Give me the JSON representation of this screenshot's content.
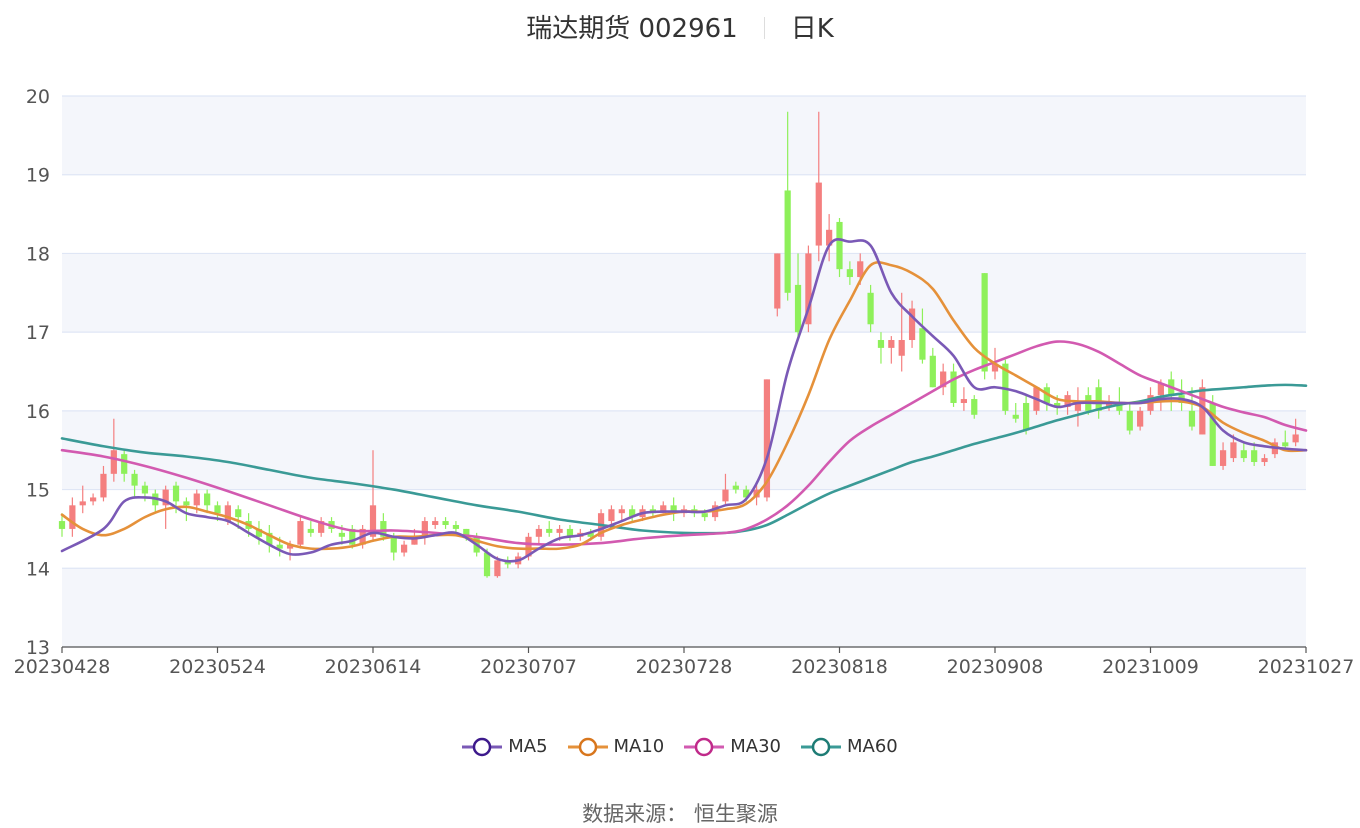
{
  "header": {
    "title": "瑞达期货 002961",
    "period": "日K"
  },
  "footer": {
    "source": "数据来源： 恒生聚源"
  },
  "colors": {
    "up": "#f47f7f",
    "down": "#8ef05a",
    "ma5": "#7a59b6",
    "ma10": "#e5913a",
    "ma30": "#d25ab0",
    "ma60": "#3a9a96",
    "ma5_ring": "#3d1a8c",
    "ma10_ring": "#d8761d",
    "ma30_ring": "#c02a8a",
    "ma60_ring": "#1e7c75",
    "band": "#f4f6fb",
    "grid": "#dfe6f5"
  },
  "chart_data": {
    "type": "candlestick",
    "title": "瑞达期货 002961",
    "subtitle": "日K",
    "ylim": [
      13,
      20
    ],
    "yticks": [
      13,
      14,
      15,
      16,
      17,
      18,
      19,
      20
    ],
    "xtick_labels": [
      "20230428",
      "20230524",
      "20230614",
      "20230707",
      "20230728",
      "20230818",
      "20230908",
      "20231009",
      "20231027"
    ],
    "legend": [
      "MA5",
      "MA10",
      "MA30",
      "MA60"
    ],
    "legend_position": "bottom-center",
    "n_days": 121,
    "candles": [
      [
        14.6,
        14.5,
        14.7,
        14.4
      ],
      [
        14.5,
        14.8,
        14.9,
        14.4
      ],
      [
        14.8,
        14.85,
        15.05,
        14.7
      ],
      [
        14.85,
        14.9,
        14.95,
        14.8
      ],
      [
        14.9,
        15.2,
        15.3,
        14.85
      ],
      [
        15.2,
        15.5,
        15.9,
        15.1
      ],
      [
        15.45,
        15.2,
        15.5,
        15.1
      ],
      [
        15.2,
        15.05,
        15.25,
        14.9
      ],
      [
        15.05,
        14.95,
        15.1,
        14.85
      ],
      [
        14.95,
        14.8,
        15.0,
        14.7
      ],
      [
        14.8,
        15.0,
        15.05,
        14.5
      ],
      [
        15.05,
        14.85,
        15.1,
        14.7
      ],
      [
        14.85,
        14.8,
        14.9,
        14.6
      ],
      [
        14.8,
        14.95,
        15.0,
        14.7
      ],
      [
        14.95,
        14.8,
        15.0,
        14.7
      ],
      [
        14.8,
        14.7,
        14.85,
        14.6
      ],
      [
        14.6,
        14.8,
        14.85,
        14.55
      ],
      [
        14.75,
        14.65,
        14.8,
        14.5
      ],
      [
        14.6,
        14.5,
        14.7,
        14.4
      ],
      [
        14.5,
        14.4,
        14.6,
        14.3
      ],
      [
        14.45,
        14.3,
        14.55,
        14.2
      ],
      [
        14.3,
        14.25,
        14.4,
        14.15
      ],
      [
        14.25,
        14.3,
        14.35,
        14.1
      ],
      [
        14.3,
        14.6,
        14.65,
        14.25
      ],
      [
        14.5,
        14.45,
        14.6,
        14.4
      ],
      [
        14.45,
        14.6,
        14.65,
        14.4
      ],
      [
        14.6,
        14.5,
        14.65,
        14.45
      ],
      [
        14.45,
        14.4,
        14.55,
        14.3
      ],
      [
        14.5,
        14.3,
        14.55,
        14.25
      ],
      [
        14.3,
        14.5,
        14.55,
        14.25
      ],
      [
        14.4,
        14.8,
        15.5,
        14.35
      ],
      [
        14.6,
        14.4,
        14.7,
        14.35
      ],
      [
        14.4,
        14.2,
        14.45,
        14.1
      ],
      [
        14.2,
        14.3,
        14.35,
        14.15
      ],
      [
        14.3,
        14.4,
        14.5,
        14.3
      ],
      [
        14.4,
        14.6,
        14.65,
        14.3
      ],
      [
        14.55,
        14.6,
        14.65,
        14.5
      ],
      [
        14.6,
        14.55,
        14.65,
        14.5
      ],
      [
        14.55,
        14.5,
        14.6,
        14.45
      ],
      [
        14.5,
        14.4,
        14.5,
        14.35
      ],
      [
        14.4,
        14.2,
        14.45,
        14.15
      ],
      [
        14.2,
        13.9,
        14.25,
        13.88
      ],
      [
        13.9,
        14.1,
        14.15,
        13.88
      ],
      [
        14.1,
        14.05,
        14.15,
        14.0
      ],
      [
        14.05,
        14.15,
        14.2,
        14.0
      ],
      [
        14.15,
        14.4,
        14.45,
        14.1
      ],
      [
        14.4,
        14.5,
        14.55,
        14.3
      ],
      [
        14.5,
        14.45,
        14.6,
        14.4
      ],
      [
        14.45,
        14.5,
        14.55,
        14.35
      ],
      [
        14.5,
        14.4,
        14.55,
        14.35
      ],
      [
        14.4,
        14.45,
        14.5,
        14.35
      ],
      [
        14.45,
        14.4,
        14.5,
        14.35
      ],
      [
        14.4,
        14.7,
        14.75,
        14.35
      ],
      [
        14.6,
        14.75,
        14.8,
        14.55
      ],
      [
        14.7,
        14.75,
        14.8,
        14.6
      ],
      [
        14.75,
        14.65,
        14.8,
        14.6
      ],
      [
        14.65,
        14.75,
        14.8,
        14.6
      ],
      [
        14.75,
        14.7,
        14.8,
        14.65
      ],
      [
        14.7,
        14.8,
        14.85,
        14.7
      ],
      [
        14.8,
        14.7,
        14.9,
        14.6
      ],
      [
        14.7,
        14.75,
        14.8,
        14.65
      ],
      [
        14.75,
        14.7,
        14.8,
        14.65
      ],
      [
        14.7,
        14.65,
        14.75,
        14.6
      ],
      [
        14.65,
        14.8,
        14.85,
        14.6
      ],
      [
        14.85,
        15.0,
        15.2,
        14.8
      ],
      [
        15.05,
        15.0,
        15.1,
        14.95
      ],
      [
        15.0,
        14.9,
        15.05,
        14.85
      ],
      [
        14.9,
        15.0,
        15.1,
        14.8
      ],
      [
        14.9,
        16.4,
        16.4,
        14.85
      ],
      [
        17.3,
        18.0,
        18.0,
        17.2
      ],
      [
        18.8,
        17.5,
        19.8,
        17.4
      ],
      [
        17.6,
        17.0,
        18.0,
        16.9
      ],
      [
        17.1,
        18.0,
        18.1,
        17.0
      ],
      [
        18.1,
        18.9,
        19.8,
        17.9
      ],
      [
        18.1,
        18.3,
        18.5,
        17.9
      ],
      [
        18.4,
        17.8,
        18.45,
        17.7
      ],
      [
        17.8,
        17.7,
        17.9,
        17.6
      ],
      [
        17.7,
        17.9,
        18.0,
        17.6
      ],
      [
        17.5,
        17.1,
        17.6,
        17.0
      ],
      [
        16.9,
        16.8,
        17.0,
        16.6
      ],
      [
        16.8,
        16.9,
        16.95,
        16.6
      ],
      [
        16.7,
        16.9,
        17.5,
        16.5
      ],
      [
        16.9,
        17.3,
        17.4,
        16.8
      ],
      [
        17.05,
        16.65,
        17.3,
        16.6
      ],
      [
        16.7,
        16.3,
        16.8,
        16.3
      ],
      [
        16.3,
        16.5,
        16.6,
        16.2
      ],
      [
        16.5,
        16.1,
        16.6,
        16.05
      ],
      [
        16.1,
        16.15,
        16.3,
        16.0
      ],
      [
        16.15,
        15.95,
        16.2,
        15.9
      ],
      [
        17.75,
        16.5,
        17.75,
        16.4
      ],
      [
        16.5,
        16.6,
        16.8,
        16.4
      ],
      [
        16.6,
        16.0,
        16.65,
        15.95
      ],
      [
        15.95,
        15.9,
        16.1,
        15.85
      ],
      [
        16.1,
        15.75,
        16.2,
        15.7
      ],
      [
        16.0,
        16.3,
        16.3,
        15.95
      ],
      [
        16.3,
        16.1,
        16.35,
        16.0
      ],
      [
        16.1,
        16.05,
        16.2,
        15.95
      ],
      [
        16.05,
        16.2,
        16.25,
        15.95
      ],
      [
        16.0,
        16.1,
        16.3,
        15.8
      ],
      [
        16.2,
        16.0,
        16.3,
        15.95
      ],
      [
        16.3,
        16.0,
        16.4,
        15.9
      ],
      [
        16.05,
        16.1,
        16.2,
        16.0
      ],
      [
        16.1,
        16.0,
        16.3,
        15.95
      ],
      [
        16.0,
        15.75,
        16.1,
        15.7
      ],
      [
        15.8,
        16.0,
        16.05,
        15.75
      ],
      [
        16.0,
        16.2,
        16.3,
        15.95
      ],
      [
        16.2,
        16.35,
        16.4,
        16.0
      ],
      [
        16.4,
        16.2,
        16.5,
        16.0
      ],
      [
        16.2,
        16.1,
        16.4,
        16.0
      ],
      [
        16.0,
        15.8,
        16.3,
        15.75
      ],
      [
        15.7,
        16.3,
        16.4,
        15.7
      ],
      [
        16.1,
        15.3,
        16.2,
        15.3
      ],
      [
        15.3,
        15.5,
        15.6,
        15.25
      ],
      [
        15.4,
        15.6,
        15.7,
        15.35
      ],
      [
        15.5,
        15.4,
        15.6,
        15.35
      ],
      [
        15.5,
        15.35,
        15.6,
        15.3
      ],
      [
        15.35,
        15.4,
        15.45,
        15.3
      ],
      [
        15.45,
        15.6,
        15.65,
        15.4
      ],
      [
        15.6,
        15.55,
        15.75,
        15.5
      ],
      [
        15.6,
        15.7,
        15.9,
        15.55
      ]
    ],
    "ma5": [
      [
        0,
        14.22
      ],
      [
        4,
        14.5
      ],
      [
        6,
        14.85
      ],
      [
        8,
        14.9
      ],
      [
        10,
        14.85
      ],
      [
        12,
        14.7
      ],
      [
        14,
        14.65
      ],
      [
        16,
        14.6
      ],
      [
        18,
        14.45
      ],
      [
        20,
        14.3
      ],
      [
        22,
        14.18
      ],
      [
        24,
        14.2
      ],
      [
        26,
        14.3
      ],
      [
        28,
        14.35
      ],
      [
        30,
        14.45
      ],
      [
        32,
        14.4
      ],
      [
        34,
        14.38
      ],
      [
        36,
        14.42
      ],
      [
        38,
        14.45
      ],
      [
        40,
        14.3
      ],
      [
        42,
        14.12
      ],
      [
        44,
        14.1
      ],
      [
        46,
        14.25
      ],
      [
        48,
        14.38
      ],
      [
        50,
        14.42
      ],
      [
        52,
        14.5
      ],
      [
        54,
        14.6
      ],
      [
        56,
        14.7
      ],
      [
        58,
        14.72
      ],
      [
        60,
        14.72
      ],
      [
        62,
        14.72
      ],
      [
        64,
        14.8
      ],
      [
        66,
        14.88
      ],
      [
        68,
        15.4
      ],
      [
        70,
        16.5
      ],
      [
        72,
        17.3
      ],
      [
        74,
        18.1
      ],
      [
        76,
        18.15
      ],
      [
        78,
        18.1
      ],
      [
        80,
        17.5
      ],
      [
        82,
        17.2
      ],
      [
        84,
        16.95
      ],
      [
        86,
        16.7
      ],
      [
        88,
        16.3
      ],
      [
        90,
        16.3
      ],
      [
        92,
        16.25
      ],
      [
        94,
        16.15
      ],
      [
        96,
        16.05
      ],
      [
        98,
        16.1
      ],
      [
        100,
        16.1
      ],
      [
        102,
        16.1
      ],
      [
        104,
        16.1
      ],
      [
        106,
        16.15
      ],
      [
        108,
        16.15
      ],
      [
        110,
        16.05
      ],
      [
        112,
        15.75
      ],
      [
        114,
        15.6
      ],
      [
        116,
        15.55
      ],
      [
        118,
        15.52
      ],
      [
        120,
        15.5
      ]
    ],
    "ma10": [
      [
        0,
        14.68
      ],
      [
        2,
        14.5
      ],
      [
        4,
        14.42
      ],
      [
        6,
        14.5
      ],
      [
        8,
        14.65
      ],
      [
        10,
        14.75
      ],
      [
        12,
        14.78
      ],
      [
        14,
        14.72
      ],
      [
        16,
        14.65
      ],
      [
        18,
        14.55
      ],
      [
        20,
        14.42
      ],
      [
        22,
        14.3
      ],
      [
        24,
        14.25
      ],
      [
        26,
        14.25
      ],
      [
        28,
        14.28
      ],
      [
        30,
        14.35
      ],
      [
        32,
        14.4
      ],
      [
        34,
        14.4
      ],
      [
        36,
        14.42
      ],
      [
        38,
        14.42
      ],
      [
        40,
        14.35
      ],
      [
        42,
        14.28
      ],
      [
        44,
        14.25
      ],
      [
        46,
        14.25
      ],
      [
        48,
        14.25
      ],
      [
        50,
        14.3
      ],
      [
        52,
        14.45
      ],
      [
        54,
        14.55
      ],
      [
        56,
        14.62
      ],
      [
        58,
        14.68
      ],
      [
        60,
        14.72
      ],
      [
        62,
        14.72
      ],
      [
        64,
        14.75
      ],
      [
        66,
        14.82
      ],
      [
        68,
        15.1
      ],
      [
        70,
        15.6
      ],
      [
        72,
        16.2
      ],
      [
        74,
        16.9
      ],
      [
        76,
        17.4
      ],
      [
        78,
        17.85
      ],
      [
        80,
        17.85
      ],
      [
        82,
        17.75
      ],
      [
        84,
        17.55
      ],
      [
        86,
        17.15
      ],
      [
        88,
        16.8
      ],
      [
        90,
        16.6
      ],
      [
        92,
        16.45
      ],
      [
        94,
        16.3
      ],
      [
        96,
        16.15
      ],
      [
        98,
        16.12
      ],
      [
        100,
        16.12
      ],
      [
        102,
        16.1
      ],
      [
        104,
        16.1
      ],
      [
        106,
        16.12
      ],
      [
        108,
        16.12
      ],
      [
        110,
        16.05
      ],
      [
        112,
        15.85
      ],
      [
        114,
        15.72
      ],
      [
        116,
        15.62
      ],
      [
        118,
        15.5
      ],
      [
        120,
        15.5
      ]
    ],
    "ma30": [
      [
        0,
        15.5
      ],
      [
        4,
        15.42
      ],
      [
        8,
        15.3
      ],
      [
        12,
        15.15
      ],
      [
        16,
        14.98
      ],
      [
        20,
        14.8
      ],
      [
        24,
        14.62
      ],
      [
        28,
        14.48
      ],
      [
        32,
        14.48
      ],
      [
        36,
        14.45
      ],
      [
        40,
        14.4
      ],
      [
        44,
        14.32
      ],
      [
        48,
        14.3
      ],
      [
        52,
        14.32
      ],
      [
        56,
        14.38
      ],
      [
        60,
        14.42
      ],
      [
        64,
        14.45
      ],
      [
        66,
        14.5
      ],
      [
        68,
        14.62
      ],
      [
        70,
        14.8
      ],
      [
        72,
        15.05
      ],
      [
        74,
        15.35
      ],
      [
        76,
        15.62
      ],
      [
        78,
        15.8
      ],
      [
        80,
        15.95
      ],
      [
        82,
        16.1
      ],
      [
        84,
        16.25
      ],
      [
        86,
        16.4
      ],
      [
        88,
        16.52
      ],
      [
        90,
        16.62
      ],
      [
        92,
        16.72
      ],
      [
        94,
        16.82
      ],
      [
        96,
        16.88
      ],
      [
        98,
        16.85
      ],
      [
        100,
        16.75
      ],
      [
        102,
        16.6
      ],
      [
        104,
        16.45
      ],
      [
        106,
        16.35
      ],
      [
        108,
        16.25
      ],
      [
        110,
        16.15
      ],
      [
        112,
        16.05
      ],
      [
        114,
        15.98
      ],
      [
        116,
        15.92
      ],
      [
        118,
        15.82
      ],
      [
        120,
        15.75
      ]
    ],
    "ma60": [
      [
        0,
        15.65
      ],
      [
        4,
        15.55
      ],
      [
        8,
        15.47
      ],
      [
        12,
        15.42
      ],
      [
        16,
        15.35
      ],
      [
        20,
        15.25
      ],
      [
        24,
        15.15
      ],
      [
        28,
        15.08
      ],
      [
        32,
        15.0
      ],
      [
        36,
        14.9
      ],
      [
        40,
        14.8
      ],
      [
        44,
        14.72
      ],
      [
        48,
        14.62
      ],
      [
        52,
        14.55
      ],
      [
        56,
        14.48
      ],
      [
        60,
        14.45
      ],
      [
        64,
        14.45
      ],
      [
        66,
        14.48
      ],
      [
        68,
        14.55
      ],
      [
        70,
        14.68
      ],
      [
        72,
        14.82
      ],
      [
        74,
        14.95
      ],
      [
        76,
        15.05
      ],
      [
        78,
        15.15
      ],
      [
        80,
        15.25
      ],
      [
        82,
        15.35
      ],
      [
        84,
        15.42
      ],
      [
        86,
        15.5
      ],
      [
        88,
        15.58
      ],
      [
        90,
        15.65
      ],
      [
        92,
        15.72
      ],
      [
        94,
        15.8
      ],
      [
        96,
        15.88
      ],
      [
        98,
        15.95
      ],
      [
        100,
        16.02
      ],
      [
        102,
        16.08
      ],
      [
        104,
        16.12
      ],
      [
        106,
        16.18
      ],
      [
        108,
        16.22
      ],
      [
        110,
        16.26
      ],
      [
        112,
        16.28
      ],
      [
        114,
        16.3
      ],
      [
        116,
        16.32
      ],
      [
        118,
        16.33
      ],
      [
        120,
        16.32
      ]
    ]
  }
}
